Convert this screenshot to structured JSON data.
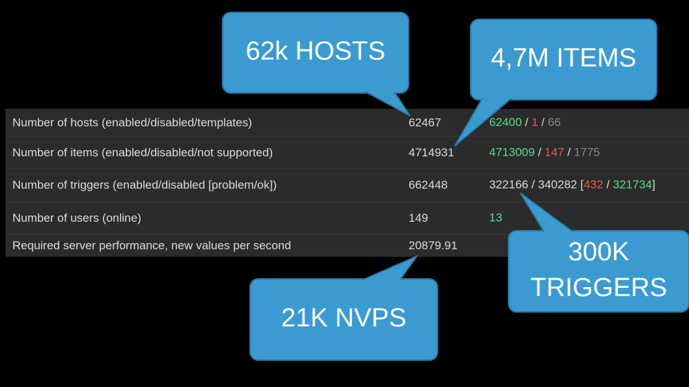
{
  "table": {
    "rows": [
      {
        "label": "Number of hosts (enabled/disabled/templates)",
        "value": "62467",
        "details": [
          {
            "text": "62400",
            "color": "#59db8f"
          },
          {
            "text": " / ",
            "color": "#dddddd"
          },
          {
            "text": "1",
            "color": "#e45959"
          },
          {
            "text": " / ",
            "color": "#dddddd"
          },
          {
            "text": "66",
            "color": "#888888"
          }
        ]
      },
      {
        "label": "Number of items (enabled/disabled/not supported)",
        "value": "4714931",
        "details": [
          {
            "text": "4713009",
            "color": "#59db8f"
          },
          {
            "text": " / ",
            "color": "#dddddd"
          },
          {
            "text": "147",
            "color": "#e45959"
          },
          {
            "text": " / ",
            "color": "#dddddd"
          },
          {
            "text": "1775",
            "color": "#888888"
          }
        ]
      },
      {
        "label": "Number of triggers (enabled/disabled [problem/ok])",
        "value": "662448",
        "details": [
          {
            "text": "322166 / 340282 [",
            "color": "#dddddd"
          },
          {
            "text": "432",
            "color": "#e45959"
          },
          {
            "text": " / ",
            "color": "#dddddd"
          },
          {
            "text": "321734",
            "color": "#59db8f"
          },
          {
            "text": "]",
            "color": "#dddddd"
          }
        ]
      },
      {
        "label": "Number of users (online)",
        "value": "149",
        "details": [
          {
            "text": "13",
            "color": "#59db8f"
          }
        ]
      },
      {
        "label": "Required server performance, new values per second",
        "value": "20879.91",
        "details": []
      }
    ]
  },
  "callouts": [
    {
      "lines": [
        "62k HOSTS"
      ]
    },
    {
      "lines": [
        "4,7M ITEMS"
      ]
    },
    {
      "lines": [
        "300K",
        "TRIGGERS"
      ]
    },
    {
      "lines": [
        "21K NVPS"
      ]
    }
  ]
}
